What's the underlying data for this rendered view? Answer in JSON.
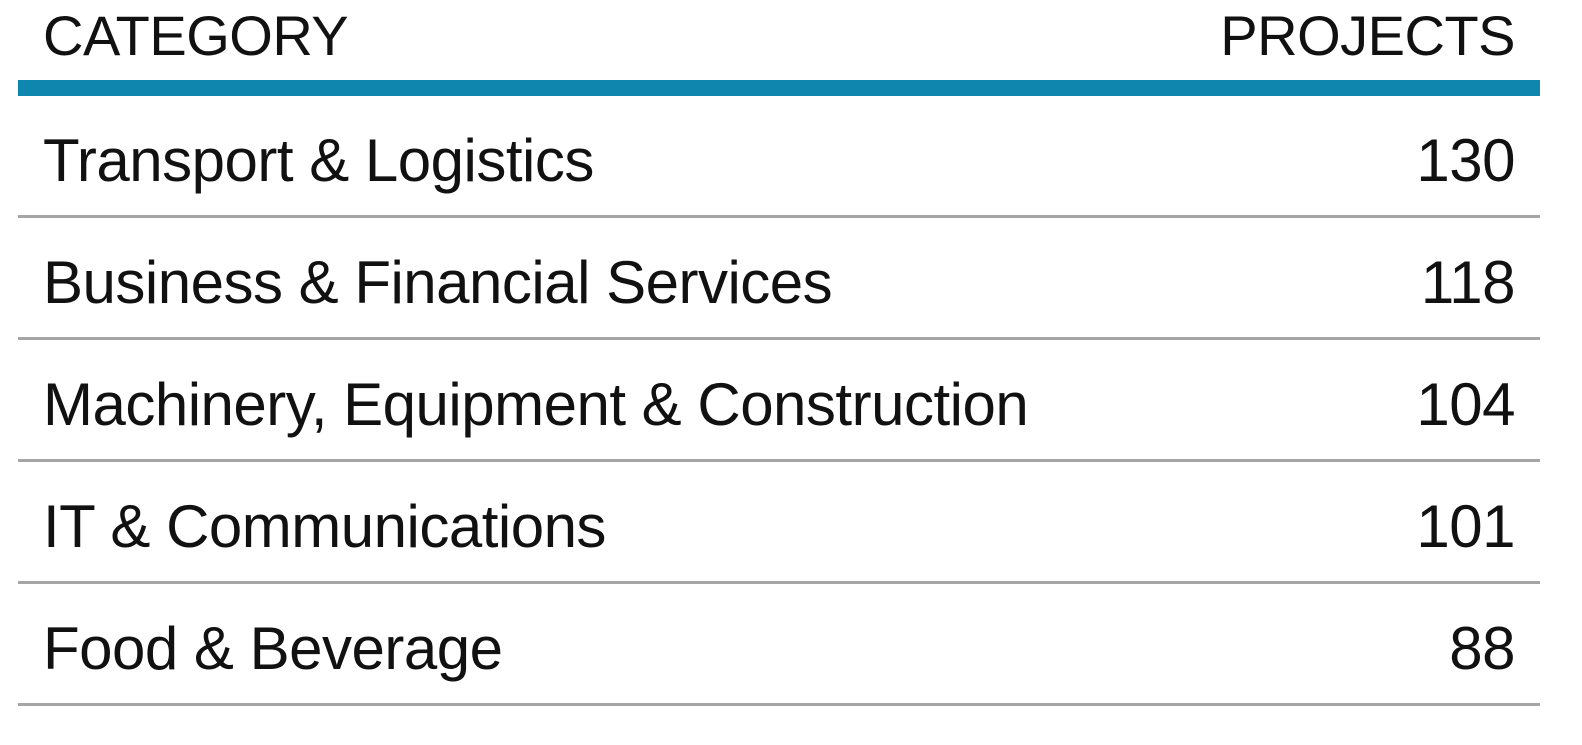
{
  "accent_color": "#0e86ad",
  "rule_color": "#a5a5a5",
  "header": {
    "category": "CATEGORY",
    "projects": "PROJECTS"
  },
  "rows": [
    {
      "category": "Transport & Logistics",
      "projects": "130"
    },
    {
      "category": "Business & Financial Services",
      "projects": "118"
    },
    {
      "category": "Machinery, Equipment & Construction",
      "projects": "104"
    },
    {
      "category": "IT & Communications",
      "projects": "101"
    },
    {
      "category": "Food & Beverage",
      "projects": "88"
    }
  ],
  "chart_data": {
    "type": "table",
    "columns": [
      "CATEGORY",
      "PROJECTS"
    ],
    "categories": [
      "Transport & Logistics",
      "Business & Financial Services",
      "Machinery, Equipment & Construction",
      "IT & Communications",
      "Food & Beverage"
    ],
    "values": [
      130,
      118,
      104,
      101,
      88
    ]
  }
}
